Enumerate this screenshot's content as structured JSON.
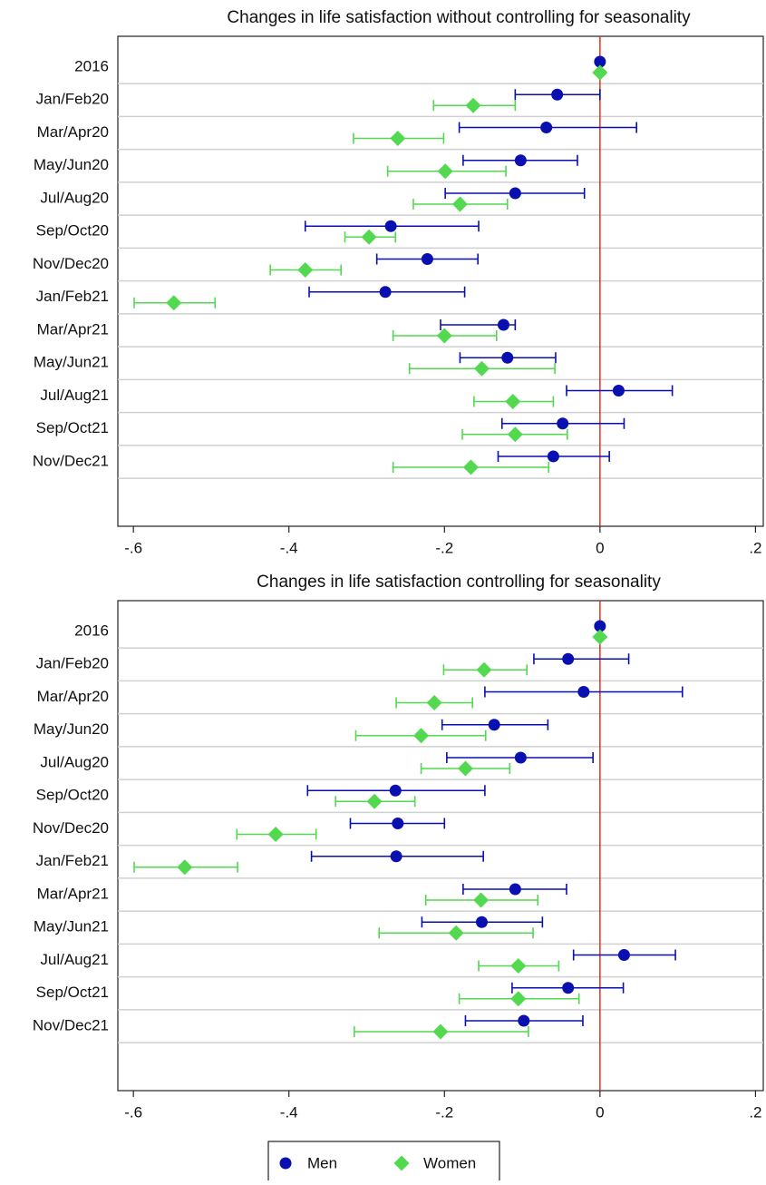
{
  "chart_data": [
    {
      "type": "errorbar",
      "title": "Changes in life satisfaction without controlling for seasonality",
      "categories": [
        "2016",
        "Jan/Feb20",
        "Mar/Apr20",
        "May/Jun20",
        "Jul/Aug20",
        "Sep/Oct20",
        "Nov/Dec20",
        "Jan/Feb21",
        "Mar/Apr21",
        "May/Jun21",
        "Jul/Aug21",
        "Sep/Oct21",
        "Nov/Dec21"
      ],
      "series": [
        {
          "color": "#0a10b0",
          "marker": "circle",
          "values": [
            0,
            -0.055,
            -0.069,
            -0.102,
            -0.109,
            -0.269,
            -0.222,
            -0.276,
            -0.124,
            -0.119,
            0.024,
            -0.048,
            -0.06
          ],
          "lower": [
            null,
            -0.109,
            -0.181,
            -0.176,
            -0.199,
            -0.379,
            -0.287,
            -0.374,
            -0.205,
            -0.18,
            -0.043,
            -0.126,
            -0.131
          ],
          "upper": [
            null,
            0.0,
            0.047,
            -0.029,
            -0.02,
            -0.156,
            -0.157,
            -0.174,
            -0.109,
            -0.057,
            0.093,
            0.031,
            0.012
          ]
        },
        {
          "color": "#52d94f",
          "marker": "diamond",
          "values": [
            0,
            -0.163,
            -0.26,
            -0.199,
            -0.18,
            -0.297,
            -0.379,
            -0.548,
            -0.2,
            -0.152,
            -0.112,
            -0.109,
            -0.166
          ],
          "lower": [
            null,
            -0.214,
            -0.317,
            -0.273,
            -0.24,
            -0.328,
            -0.424,
            -0.599,
            -0.266,
            -0.245,
            -0.162,
            -0.177,
            -0.266
          ],
          "upper": [
            null,
            -0.109,
            -0.201,
            -0.121,
            -0.119,
            -0.263,
            -0.333,
            -0.495,
            -0.133,
            -0.058,
            -0.06,
            -0.042,
            -0.066
          ]
        }
      ],
      "xlim": [
        -0.62,
        0.21
      ],
      "xticks": [
        {
          "value": -0.6,
          "label": "-.6"
        },
        {
          "value": -0.4,
          "label": "-.4"
        },
        {
          "value": -0.2,
          "label": "-.2"
        },
        0,
        {
          "value": 0.2,
          "label": ".2"
        }
      ],
      "refline": {
        "value": 0,
        "color": "#e0301e"
      }
    },
    {
      "type": "errorbar",
      "title": "Changes in life satisfaction controlling for seasonality",
      "categories": [
        "2016",
        "Jan/Feb20",
        "Mar/Apr20",
        "May/Jun20",
        "Jul/Aug20",
        "Sep/Oct20",
        "Nov/Dec20",
        "Jan/Feb21",
        "Mar/Apr21",
        "May/Jun21",
        "Jul/Aug21",
        "Sep/Oct21",
        "Nov/Dec21"
      ],
      "series": [
        {
          "name": "Men",
          "color": "#0a10b0",
          "marker": "circle",
          "values": [
            0,
            -0.041,
            -0.021,
            -0.136,
            -0.102,
            -0.263,
            -0.26,
            -0.262,
            -0.109,
            -0.152,
            0.031,
            -0.041,
            -0.098
          ],
          "lower": [
            null,
            -0.085,
            -0.148,
            -0.203,
            -0.197,
            -0.376,
            -0.321,
            -0.371,
            -0.176,
            -0.229,
            -0.034,
            -0.113,
            -0.173
          ],
          "upper": [
            null,
            0.037,
            0.106,
            -0.067,
            -0.009,
            -0.148,
            -0.2,
            -0.15,
            -0.043,
            -0.074,
            0.097,
            0.03,
            -0.022
          ]
        },
        {
          "name": "Women",
          "color": "#52d94f",
          "marker": "diamond",
          "values": [
            0,
            -0.149,
            -0.213,
            -0.23,
            -0.173,
            -0.29,
            -0.417,
            -0.534,
            -0.153,
            -0.185,
            -0.105,
            -0.105,
            -0.205
          ],
          "lower": [
            null,
            -0.201,
            -0.262,
            -0.314,
            -0.23,
            -0.34,
            -0.467,
            -0.599,
            -0.224,
            -0.284,
            -0.156,
            -0.181,
            -0.316
          ],
          "upper": [
            null,
            -0.094,
            -0.164,
            -0.147,
            -0.116,
            -0.238,
            -0.365,
            -0.466,
            -0.08,
            -0.086,
            -0.053,
            -0.027,
            -0.092
          ]
        }
      ],
      "xlim": [
        -0.62,
        0.21
      ],
      "xticks": [
        {
          "value": -0.6,
          "label": "-.6"
        },
        {
          "value": -0.4,
          "label": "-.4"
        },
        {
          "value": -0.2,
          "label": "-.2"
        },
        0,
        {
          "value": 0.2,
          "label": ".2"
        }
      ],
      "refline": {
        "value": 0,
        "color": "#e0301e"
      },
      "legend": "bottom"
    }
  ]
}
